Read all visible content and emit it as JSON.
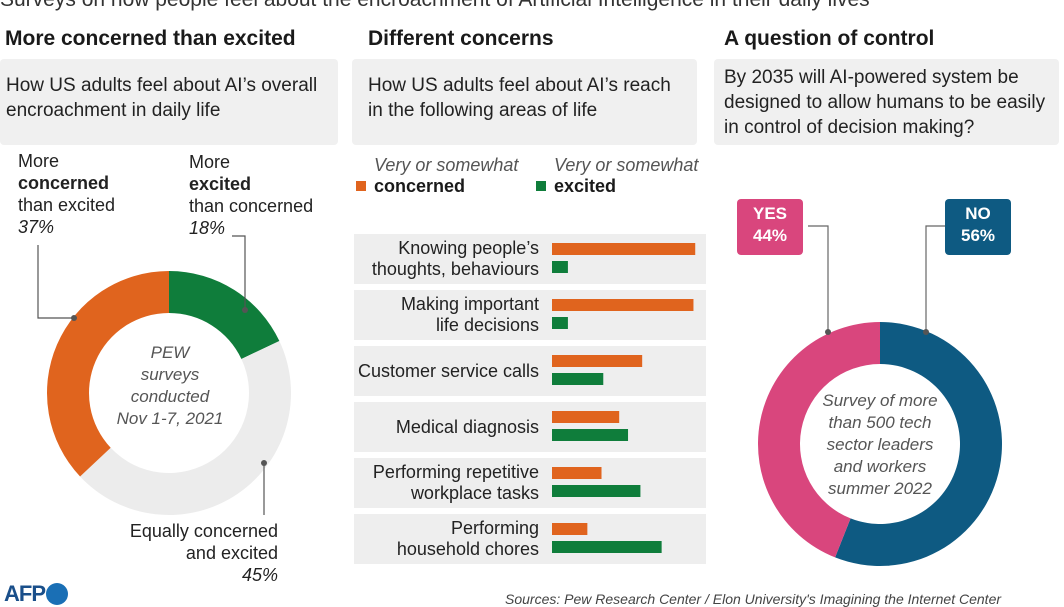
{
  "headline": "Surveys on how people feel about the encroachment of Artificial Intelligence in their daily lives",
  "colors": {
    "concerned": "#e0641e",
    "excited": "#0f7d3b",
    "equal": "#ececec",
    "yes": "#d9467d",
    "no": "#0e5a82",
    "row_bg": "#eeeeee",
    "box_bg": "#f0f0f0"
  },
  "panel1": {
    "title": "More concerned than excited",
    "question": "How US adults feel about AI’s overall encroachment in daily life",
    "center_note": [
      "PEW",
      "surveys",
      "conducted",
      "Nov 1-7, 2021"
    ],
    "labels": {
      "concerned": {
        "l1": "More",
        "l2": "concerned",
        "l3": "than excited",
        "pct": "37%"
      },
      "excited": {
        "l1": "More",
        "l2": "excited",
        "l3": "than concerned",
        "pct": "18%"
      },
      "equal": {
        "l1": "Equally concerned",
        "l2": "and excited",
        "pct": "45%"
      }
    }
  },
  "panel2": {
    "title": "Different concerns",
    "question": "How US adults feel about AI’s reach in the following areas of life",
    "legend": {
      "concerned": {
        "sub": "Very or somewhat",
        "main": "concerned"
      },
      "excited": {
        "sub": "Very or somewhat",
        "main": "excited"
      }
    }
  },
  "panel3": {
    "title": "A question of control",
    "question": "By 2035 will AI-powered system be designed to allow humans to be easily in control of decision making?",
    "center_note": [
      "Survey of more",
      "than 500 tech",
      "sector leaders",
      "and workers",
      "summer 2022"
    ],
    "yes": {
      "label": "YES",
      "pct": "44%"
    },
    "no": {
      "label": "NO",
      "pct": "56%"
    }
  },
  "source": "Sources: Pew Research Center / Elon University's Imagining the Internet Center",
  "logo": "AFP",
  "chart_data": [
    {
      "type": "pie",
      "title": "More concerned than excited",
      "categories": [
        "More concerned than excited",
        "More excited than concerned",
        "Equally concerned and excited"
      ],
      "values": [
        37,
        18,
        45
      ]
    },
    {
      "type": "bar",
      "orientation": "horizontal",
      "title": "Different concerns",
      "categories": [
        [
          "Knowing people’s",
          "thoughts, behaviours"
        ],
        [
          "Making important",
          "life decisions"
        ],
        [
          "Customer service calls"
        ],
        [
          "Medical diagnosis"
        ],
        [
          "Performing repetitive",
          "workplace tasks"
        ],
        [
          "Performing",
          "household chores"
        ]
      ],
      "series": [
        {
          "name": "Very or somewhat concerned",
          "values": [
            81,
            80,
            51,
            38,
            28,
            20
          ]
        },
        {
          "name": "Very or somewhat excited",
          "values": [
            9,
            9,
            29,
            43,
            50,
            62
          ]
        }
      ],
      "xlim": [
        0,
        82
      ]
    },
    {
      "type": "pie",
      "title": "A question of control",
      "categories": [
        "YES",
        "NO"
      ],
      "values": [
        44,
        56
      ]
    }
  ]
}
